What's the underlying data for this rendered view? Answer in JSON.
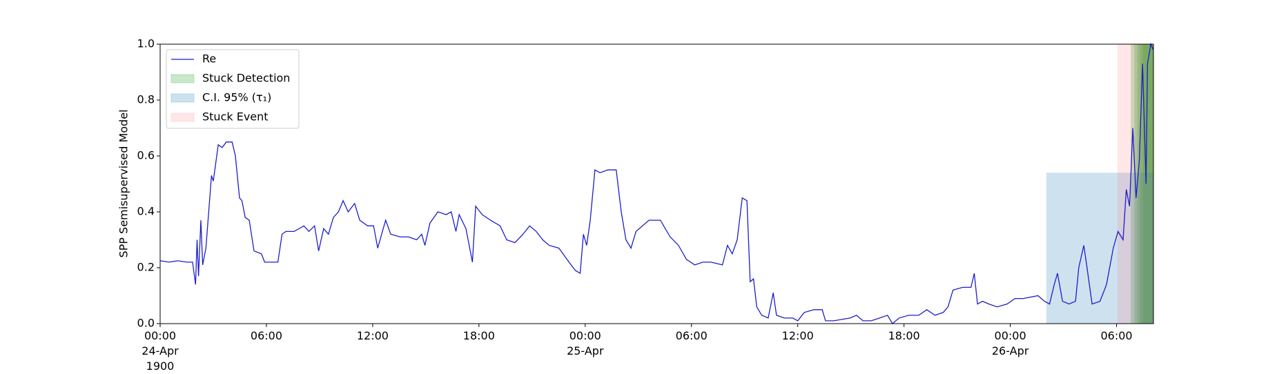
{
  "chart_data": {
    "type": "line",
    "ylabel": "SPP Semisupervised Model",
    "xlim": [
      "1900-04-24 00:00",
      "1900-04-26 08:05"
    ],
    "xticks": [
      {
        "value": "1900-04-24 00:00",
        "label": "00:00\n24-Apr\n1900"
      },
      {
        "value": "1900-04-24 06:00",
        "label": "06:00"
      },
      {
        "value": "1900-04-24 12:00",
        "label": "12:00"
      },
      {
        "value": "1900-04-24 18:00",
        "label": "18:00"
      },
      {
        "value": "1900-04-25 00:00",
        "label": "00:00\n25-Apr"
      },
      {
        "value": "1900-04-25 06:00",
        "label": "06:00"
      },
      {
        "value": "1900-04-25 12:00",
        "label": "12:00"
      },
      {
        "value": "1900-04-25 18:00",
        "label": "18:00"
      },
      {
        "value": "1900-04-26 00:00",
        "label": "00:00\n26-Apr"
      },
      {
        "value": "1900-04-26 06:00",
        "label": "06:00"
      }
    ],
    "ylim": [
      0,
      1
    ],
    "yticks": [
      {
        "value": 0,
        "label": "0.0"
      },
      0.2,
      0.4,
      0.6,
      0.8,
      {
        "value": 1,
        "label": "1.0"
      }
    ],
    "legend": "upper left",
    "x": [
      "1900-04-24 00:00",
      "1900-04-24 00:30",
      "1900-04-24 01:00",
      "1900-04-24 01:30",
      "1900-04-24 01:50",
      "1900-04-24 02:00",
      "1900-04-24 02:05",
      "1900-04-24 02:10",
      "1900-04-24 02:18",
      "1900-04-24 02:24",
      "1900-04-24 02:35",
      "1900-04-24 02:54",
      "1900-04-24 03:00",
      "1900-04-24 03:17",
      "1900-04-24 03:30",
      "1900-04-24 03:44",
      "1900-04-24 04:04",
      "1900-04-24 04:15",
      "1900-04-24 04:29",
      "1900-04-24 04:37",
      "1900-04-24 04:48",
      "1900-04-24 05:02",
      "1900-04-24 05:18",
      "1900-04-24 05:43",
      "1900-04-24 05:54",
      "1900-04-24 06:11",
      "1900-04-24 06:39",
      "1900-04-24 06:53",
      "1900-04-24 07:06",
      "1900-04-24 07:34",
      "1900-04-24 08:07",
      "1900-04-24 08:24",
      "1900-04-24 08:43",
      "1900-04-24 08:57",
      "1900-04-24 09:14",
      "1900-04-24 09:30",
      "1900-04-24 09:47",
      "1900-04-24 10:04",
      "1900-04-24 10:20",
      "1900-04-24 10:37",
      "1900-04-24 10:59",
      "1900-04-24 11:16",
      "1900-04-24 11:43",
      "1900-04-24 12:03",
      "1900-04-24 12:17",
      "1900-04-24 12:33",
      "1900-04-24 12:44",
      "1900-04-24 13:01",
      "1900-04-24 13:34",
      "1900-04-24 14:02",
      "1900-04-24 14:29",
      "1900-04-24 14:46",
      "1900-04-24 14:57",
      "1900-04-24 15:14",
      "1900-04-24 15:41",
      "1900-04-24 16:09",
      "1900-04-24 16:26",
      "1900-04-24 16:42",
      "1900-04-24 16:53",
      "1900-04-24 17:16",
      "1900-04-24 17:38",
      "1900-04-24 17:49",
      "1900-04-24 18:11",
      "1900-04-24 18:39",
      "1900-04-24 19:12",
      "1900-04-24 19:34",
      "1900-04-24 20:02",
      "1900-04-24 20:29",
      "1900-04-24 20:52",
      "1900-04-24 21:14",
      "1900-04-24 21:36",
      "1900-04-24 21:58",
      "1900-04-24 22:31",
      "1900-04-24 23:05",
      "1900-04-24 23:27",
      "1900-04-24 23:43",
      "1900-04-24 23:54",
      "1900-04-25 00:05",
      "1900-04-25 00:17",
      "1900-04-25 00:33",
      "1900-04-25 00:50",
      "1900-04-25 01:17",
      "1900-04-25 01:45",
      "1900-04-25 02:02",
      "1900-04-25 02:18",
      "1900-04-25 02:35",
      "1900-04-25 02:52",
      "1900-04-25 03:14",
      "1900-04-25 03:36",
      "1900-04-25 04:15",
      "1900-04-25 04:31",
      "1900-04-25 04:48",
      "1900-04-25 05:16",
      "1900-04-25 05:43",
      "1900-04-25 06:11",
      "1900-04-25 06:39",
      "1900-04-25 07:06",
      "1900-04-25 07:45",
      "1900-04-25 08:02",
      "1900-04-25 08:18",
      "1900-04-25 08:35",
      "1900-04-25 08:52",
      "1900-04-25 09:08",
      "1900-04-25 09:19",
      "1900-04-25 09:30",
      "1900-04-25 09:41",
      "1900-04-25 09:58",
      "1900-04-25 10:20",
      "1900-04-25 10:37",
      "1900-04-25 10:48",
      "1900-04-25 11:15",
      "1900-04-25 11:43",
      "1900-04-25 12:00",
      "1900-04-25 12:22",
      "1900-04-25 12:55",
      "1900-04-25 13:23",
      "1900-04-25 13:34",
      "1900-04-25 14:02",
      "1900-04-25 14:57",
      "1900-04-25 15:19",
      "1900-04-25 15:41",
      "1900-04-25 16:09",
      "1900-04-25 16:37",
      "1900-04-25 17:04",
      "1900-04-25 17:21",
      "1900-04-25 17:43",
      "1900-04-25 18:16",
      "1900-04-25 18:50",
      "1900-04-25 19:17",
      "1900-04-25 19:45",
      "1900-04-25 20:13",
      "1900-04-25 20:29",
      "1900-04-25 20:46",
      "1900-04-25 21:19",
      "1900-04-25 21:47",
      "1900-04-25 21:58",
      "1900-04-25 22:09",
      "1900-04-25 22:26",
      "1900-04-25 22:48",
      "1900-04-25 23:15",
      "1900-04-25 23:49",
      "1900-04-26 00:16",
      "1900-04-26 00:44",
      "1900-04-26 01:34",
      "1900-04-26 01:56",
      "1900-04-26 02:13",
      "1900-04-26 02:29",
      "1900-04-26 02:40",
      "1900-04-26 02:57",
      "1900-04-26 03:19",
      "1900-04-26 03:41",
      "1900-04-26 03:52",
      "1900-04-26 04:09",
      "1900-04-26 04:20",
      "1900-04-26 04:37",
      "1900-04-26 05:04",
      "1900-04-26 05:26",
      "1900-04-26 05:49",
      "1900-04-26 06:05",
      "1900-04-26 06:22",
      "1900-04-26 06:33",
      "1900-04-26 06:44",
      "1900-04-26 06:55",
      "1900-04-26 07:06",
      "1900-04-26 07:17",
      "1900-04-26 07:28",
      "1900-04-26 07:40",
      "1900-04-26 07:45",
      "1900-04-26 07:56",
      "1900-04-26 08:04"
    ],
    "series": [
      {
        "name": "Re",
        "color": "#1c1ccc",
        "values": [
          0.225,
          0.22,
          0.225,
          0.22,
          0.22,
          0.14,
          0.3,
          0.17,
          0.37,
          0.21,
          0.27,
          0.53,
          0.51,
          0.64,
          0.63,
          0.65,
          0.65,
          0.6,
          0.45,
          0.44,
          0.38,
          0.37,
          0.26,
          0.25,
          0.22,
          0.22,
          0.22,
          0.32,
          0.33,
          0.33,
          0.35,
          0.33,
          0.35,
          0.26,
          0.34,
          0.32,
          0.38,
          0.4,
          0.44,
          0.4,
          0.43,
          0.37,
          0.35,
          0.35,
          0.27,
          0.33,
          0.37,
          0.32,
          0.31,
          0.31,
          0.3,
          0.32,
          0.28,
          0.36,
          0.4,
          0.39,
          0.4,
          0.33,
          0.39,
          0.34,
          0.22,
          0.42,
          0.39,
          0.37,
          0.35,
          0.3,
          0.29,
          0.32,
          0.35,
          0.33,
          0.3,
          0.28,
          0.27,
          0.22,
          0.19,
          0.18,
          0.32,
          0.28,
          0.37,
          0.55,
          0.54,
          0.55,
          0.55,
          0.4,
          0.3,
          0.27,
          0.33,
          0.35,
          0.37,
          0.37,
          0.34,
          0.31,
          0.28,
          0.23,
          0.21,
          0.22,
          0.22,
          0.21,
          0.28,
          0.25,
          0.3,
          0.45,
          0.44,
          0.15,
          0.16,
          0.06,
          0.03,
          0.02,
          0.11,
          0.03,
          0.02,
          0.02,
          0.01,
          0.04,
          0.05,
          0.05,
          0.01,
          0.01,
          0.02,
          0.03,
          0.01,
          0.01,
          0.02,
          0.03,
          0.0,
          0.02,
          0.03,
          0.03,
          0.05,
          0.03,
          0.04,
          0.06,
          0.12,
          0.13,
          0.13,
          0.18,
          0.07,
          0.08,
          0.07,
          0.06,
          0.07,
          0.09,
          0.09,
          0.1,
          0.08,
          0.07,
          0.14,
          0.18,
          0.08,
          0.07,
          0.08,
          0.2,
          0.28,
          0.2,
          0.07,
          0.08,
          0.14,
          0.27,
          0.33,
          0.3,
          0.48,
          0.42,
          0.7,
          0.45,
          0.58,
          0.93,
          0.5,
          0.93,
          1.0,
          0.98
        ]
      }
    ],
    "spans": [
      {
        "name": "Stuck Detection",
        "color": "rgba(44,160,44,0.25)",
        "ranges": [
          [
            "1900-04-26 06:48",
            "1900-04-26 08:05"
          ],
          [
            "1900-04-26 07:00",
            "1900-04-26 08:05"
          ],
          [
            "1900-04-26 07:10",
            "1900-04-26 08:05"
          ],
          [
            "1900-04-26 07:20",
            "1900-04-26 08:05"
          ],
          [
            "1900-04-26 07:30",
            "1900-04-26 08:05"
          ]
        ]
      },
      {
        "name": "C.I. 95% (τ₁)",
        "color": "rgba(31,119,180,0.22)",
        "ranges": [
          [
            "1900-04-26 02:02",
            "1900-04-26 08:05"
          ]
        ],
        "y": [
          0,
          0.54
        ]
      },
      {
        "name": "Stuck Event",
        "color": "rgba(255,120,120,0.18)",
        "ranges": [
          [
            "1900-04-26 06:03",
            "1900-04-26 08:05"
          ]
        ]
      }
    ]
  }
}
